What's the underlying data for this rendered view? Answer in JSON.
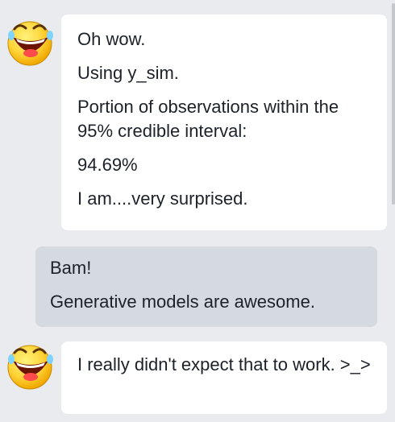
{
  "messages": [
    {
      "sender": "bot",
      "avatar_icon": "laughing-face-icon",
      "lines": [
        "Oh wow.",
        "Using y_sim.",
        "Portion of observations within the 95% credible interval:",
        "94.69%",
        "I am....very surprised."
      ]
    },
    {
      "sender": "user",
      "lines": [
        "Bam!",
        "Generative models are awesome."
      ]
    },
    {
      "sender": "bot",
      "avatar_icon": "laughing-face-icon",
      "lines": [
        "I really didn't expect that to work. >_>"
      ]
    }
  ],
  "colors": {
    "background": "#e9ebee",
    "bot_bubble": "#ffffff",
    "user_bubble": "#d5dae0",
    "text": "#1d2129",
    "emoji_face": "#ffd43a"
  }
}
